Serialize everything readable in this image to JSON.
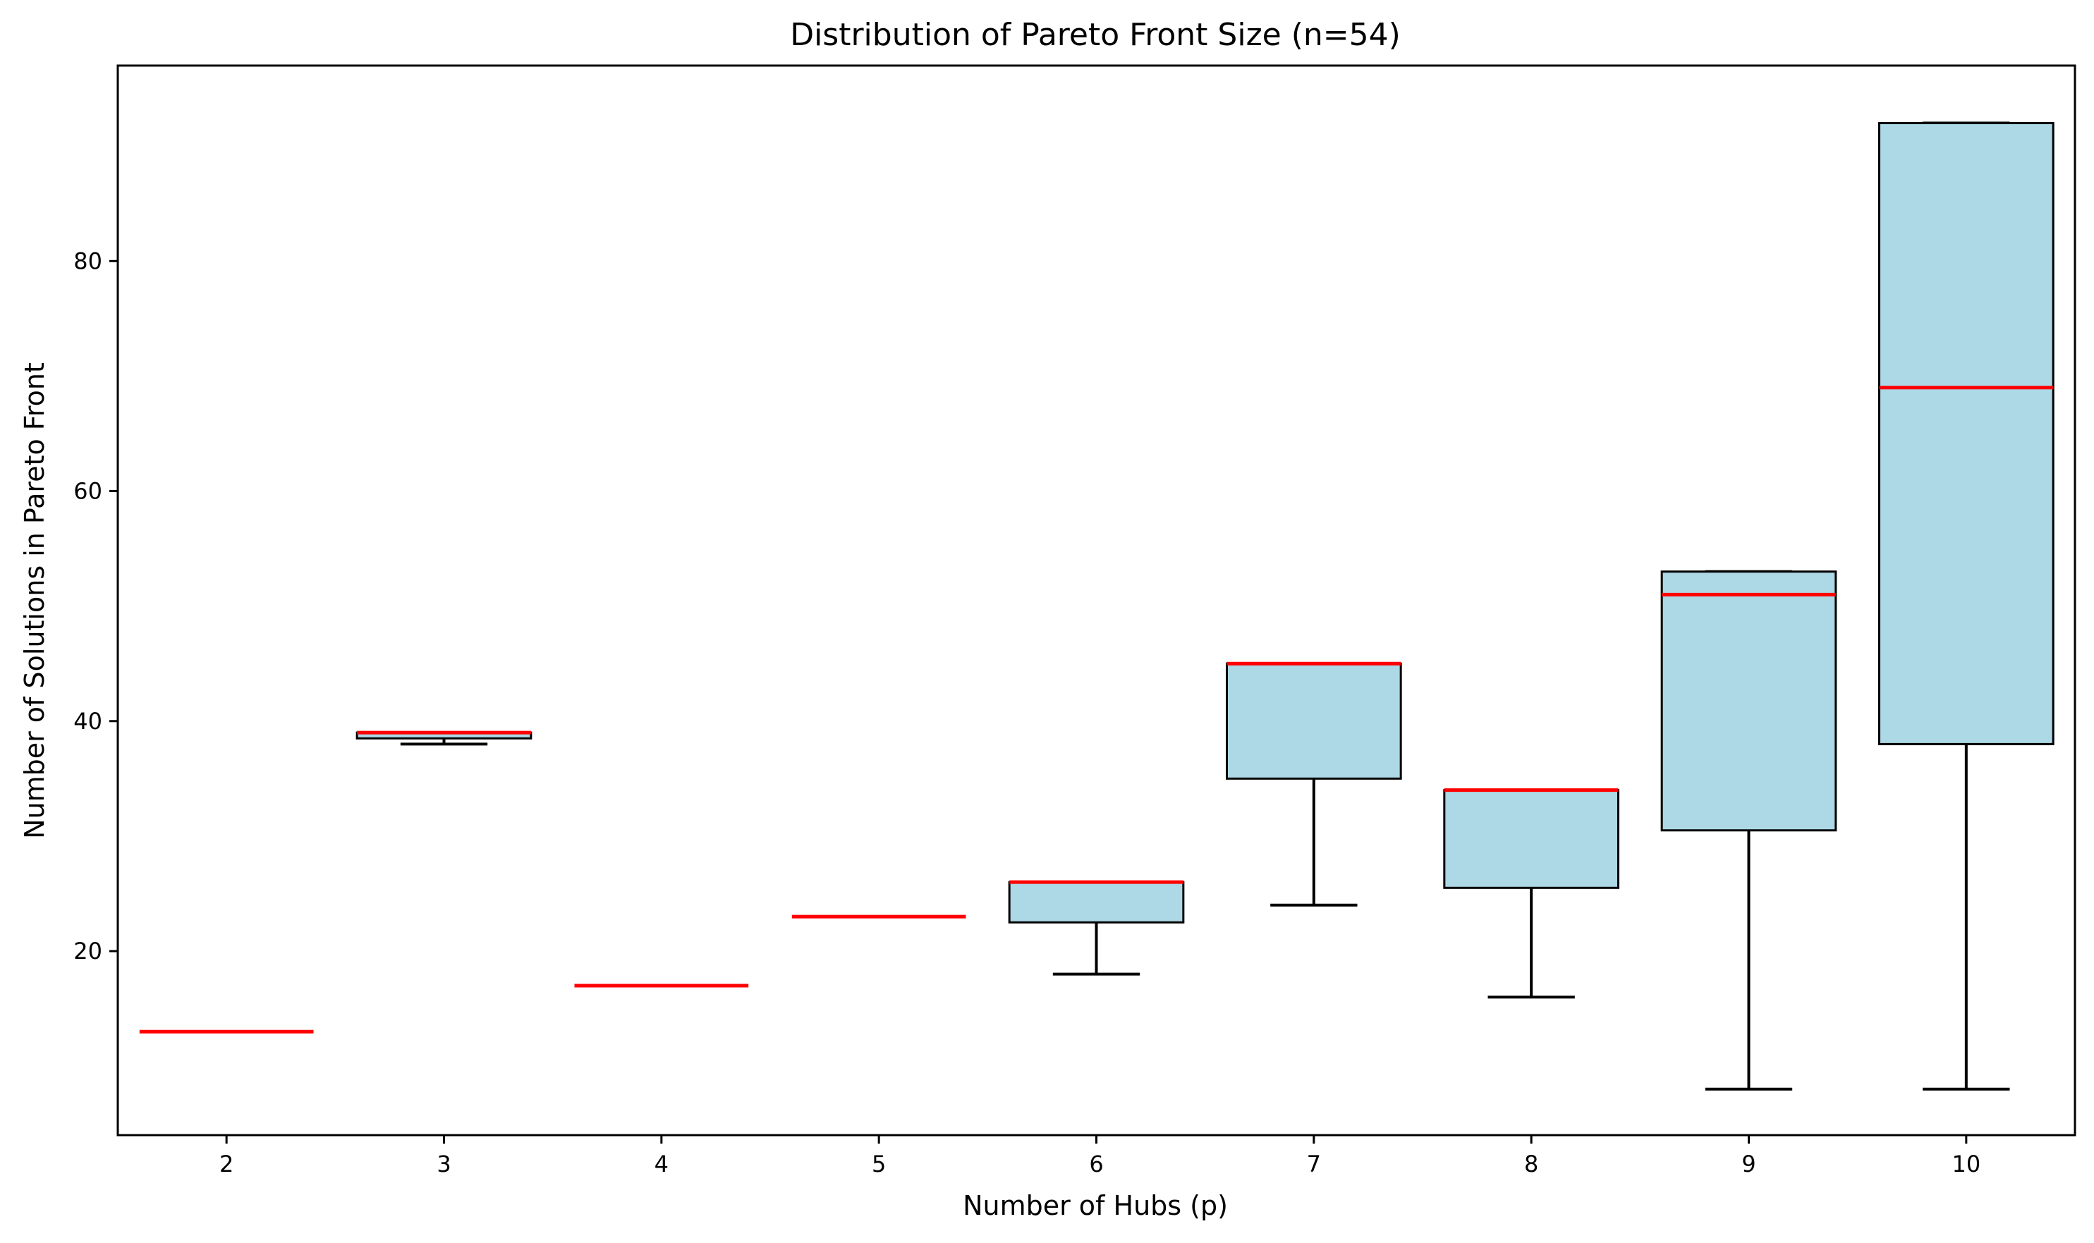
{
  "chart_data": {
    "type": "box",
    "title": "Distribution of Pareto Front Size (n=54)",
    "xlabel": "Number of Hubs (p)",
    "ylabel": "Number of Solutions in Pareto Front",
    "ylim": [
      4,
      97
    ],
    "yticks": [
      20,
      40,
      60,
      80
    ],
    "categories": [
      "2",
      "3",
      "4",
      "5",
      "6",
      "7",
      "8",
      "9",
      "10"
    ],
    "boxes": [
      {
        "category": "2",
        "whisker_low": 13,
        "q1": 13,
        "median": 13,
        "q3": 13,
        "whisker_high": 13
      },
      {
        "category": "3",
        "whisker_low": 38,
        "q1": 38.5,
        "median": 39,
        "q3": 39,
        "whisker_high": 39
      },
      {
        "category": "4",
        "whisker_low": 17,
        "q1": 17,
        "median": 17,
        "q3": 17,
        "whisker_high": 17
      },
      {
        "category": "5",
        "whisker_low": 23,
        "q1": 23,
        "median": 23,
        "q3": 23,
        "whisker_high": 23
      },
      {
        "category": "6",
        "whisker_low": 18,
        "q1": 22.5,
        "median": 26,
        "q3": 26,
        "whisker_high": 26
      },
      {
        "category": "7",
        "whisker_low": 24,
        "q1": 35,
        "median": 45,
        "q3": 45,
        "whisker_high": 45
      },
      {
        "category": "8",
        "whisker_low": 16,
        "q1": 25.5,
        "median": 34,
        "q3": 34,
        "whisker_high": 34
      },
      {
        "category": "9",
        "whisker_low": 8,
        "q1": 30.5,
        "median": 51,
        "q3": 53,
        "whisker_high": 53
      },
      {
        "category": "10",
        "whisker_low": 8,
        "q1": 38,
        "median": 69,
        "q3": 92,
        "whisker_high": 92
      }
    ],
    "colors": {
      "box_fill": "#add8e6",
      "box_edge": "#000000",
      "median": "#ff0000",
      "whisker": "#000000"
    },
    "grid": false,
    "legend": "none"
  }
}
